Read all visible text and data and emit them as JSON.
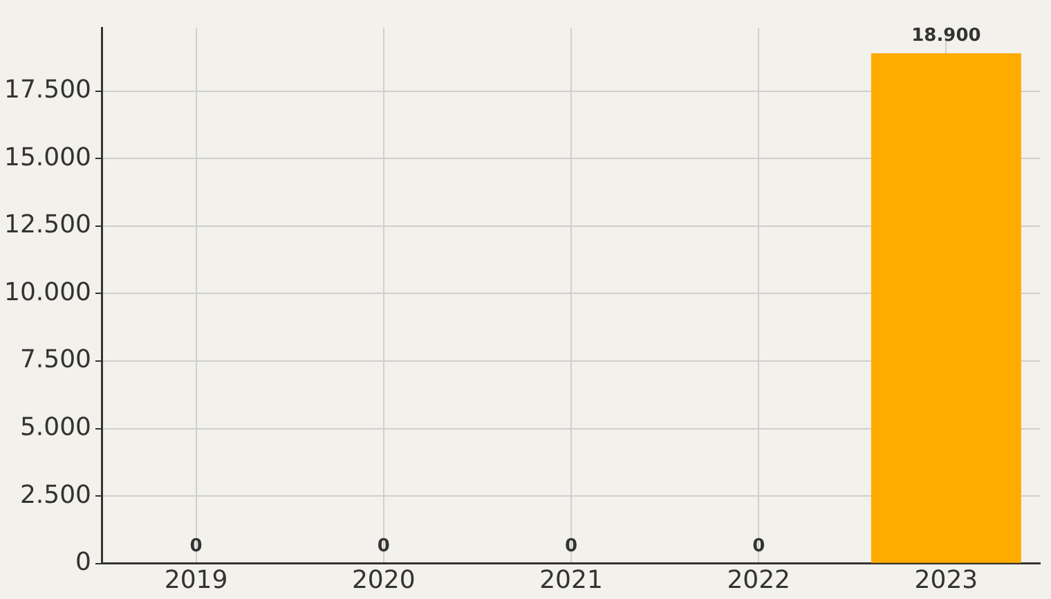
{
  "chart_data": {
    "type": "bar",
    "categories": [
      "2019",
      "2020",
      "2021",
      "2022",
      "2023"
    ],
    "values": [
      0,
      0,
      0,
      0,
      18900
    ],
    "color": "#ffab00",
    "value_labels": [
      "0",
      "0",
      "0",
      "0",
      "18.900"
    ],
    "ylim": [
      0,
      19850
    ],
    "yticks": [
      0,
      {
        "value": 2500,
        "label": "2.500"
      },
      {
        "value": 5000,
        "label": "5.000"
      },
      {
        "value": 7500,
        "label": "7.500"
      },
      {
        "value": 10000,
        "label": "10.000"
      },
      {
        "value": 12500,
        "label": "12.500"
      },
      {
        "value": 15000,
        "label": "15.000"
      },
      {
        "value": 17500,
        "label": "17.500"
      }
    ],
    "grid": true
  }
}
